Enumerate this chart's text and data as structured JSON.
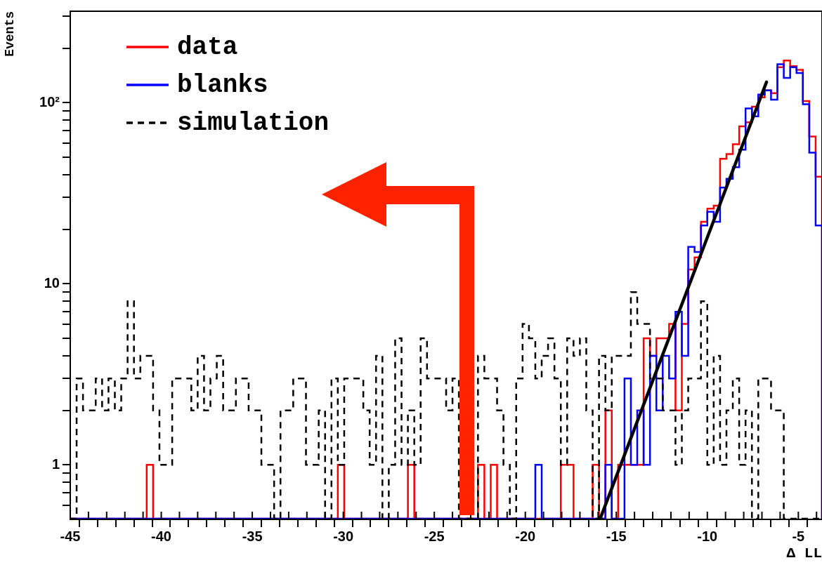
{
  "chart_data": {
    "type": "histogram",
    "xlabel": "Δ LL",
    "ylabel": "Events",
    "log": "y",
    "legend": "top left",
    "xlim": [
      -45,
      -3.7
    ],
    "ylim": [
      0.5,
      320
    ],
    "xticks": [
      -45,
      {
        "value": -44,
        "label": null
      },
      {
        "value": -43,
        "label": null
      },
      {
        "value": -42,
        "label": null
      },
      {
        "value": -41,
        "label": null
      },
      -40,
      {
        "value": -39,
        "label": null
      },
      {
        "value": -38,
        "label": null
      },
      {
        "value": -37,
        "label": null
      },
      {
        "value": -36,
        "label": null
      },
      -35,
      {
        "value": -34,
        "label": null
      },
      {
        "value": -33,
        "label": null
      },
      {
        "value": -32,
        "label": null
      },
      {
        "value": -31,
        "label": null
      },
      -30,
      {
        "value": -29,
        "label": null
      },
      {
        "value": -28,
        "label": null
      },
      {
        "value": -27,
        "label": null
      },
      {
        "value": -26,
        "label": null
      },
      -25,
      {
        "value": -24,
        "label": null
      },
      {
        "value": -23,
        "label": null
      },
      {
        "value": -22,
        "label": null
      },
      {
        "value": -21,
        "label": null
      },
      -20,
      {
        "value": -19,
        "label": null
      },
      {
        "value": -18,
        "label": null
      },
      {
        "value": -17,
        "label": null
      },
      {
        "value": -16,
        "label": null
      },
      -15,
      {
        "value": -14,
        "label": null
      },
      {
        "value": -13,
        "label": null
      },
      {
        "value": -12,
        "label": null
      },
      {
        "value": -11,
        "label": null
      },
      -10,
      {
        "value": -9,
        "label": null
      },
      {
        "value": -8,
        "label": null
      },
      {
        "value": -7,
        "label": null
      },
      {
        "value": -6,
        "label": null
      },
      -5,
      {
        "value": -4,
        "label": null
      }
    ],
    "yticks": [
      {
        "value": 0.6,
        "label": null
      },
      {
        "value": 0.7,
        "label": null
      },
      {
        "value": 0.8,
        "label": null
      },
      {
        "value": 0.9,
        "label": null
      },
      1,
      {
        "value": 2,
        "label": null
      },
      {
        "value": 3,
        "label": null
      },
      {
        "value": 4,
        "label": null
      },
      {
        "value": 5,
        "label": null
      },
      {
        "value": 6,
        "label": null
      },
      {
        "value": 7,
        "label": null
      },
      {
        "value": 8,
        "label": null
      },
      {
        "value": 9,
        "label": null
      },
      10,
      {
        "value": 20,
        "label": null
      },
      {
        "value": 30,
        "label": null
      },
      {
        "value": 40,
        "label": null
      },
      {
        "value": 50,
        "label": null
      },
      {
        "value": 60,
        "label": null
      },
      {
        "value": 70,
        "label": null
      },
      {
        "value": 80,
        "label": null
      },
      {
        "value": 90,
        "label": null
      },
      {
        "value": 100,
        "label": "10²"
      },
      {
        "value": 200,
        "label": null
      },
      {
        "value": 300,
        "label": null
      }
    ],
    "bins": [
      -45,
      -44.65,
      -44.3,
      -43.95,
      -43.6,
      -43.25,
      -42.9,
      -42.55,
      -42.2,
      -41.85,
      -41.5,
      -41.15,
      -40.8,
      -40.45,
      -40.1,
      -39.75,
      -39.4,
      -39.05,
      -38.7,
      -38.35,
      -38,
      -37.65,
      -37.3,
      -36.95,
      -36.6,
      -36.25,
      -35.9,
      -35.55,
      -35.2,
      -34.85,
      -34.5,
      -34.15,
      -33.8,
      -33.45,
      -33.1,
      -32.75,
      -32.4,
      -32.05,
      -31.7,
      -31.35,
      -31,
      -30.65,
      -30.3,
      -29.95,
      -29.6,
      -29.25,
      -28.9,
      -28.55,
      -28.2,
      -27.85,
      -27.5,
      -27.15,
      -26.8,
      -26.45,
      -26.1,
      -25.75,
      -25.4,
      -25.05,
      -24.7,
      -24.35,
      -24,
      -23.65,
      -23.3,
      -22.95,
      -22.6,
      -22.25,
      -21.9,
      -21.55,
      -21.2,
      -20.85,
      -20.5,
      -20.15,
      -19.8,
      -19.45,
      -19.1,
      -18.75,
      -18.4,
      -18.05,
      -17.7,
      -17.35,
      -17,
      -16.65,
      -16.3,
      -15.95,
      -15.6,
      -15.25,
      -14.9,
      -14.55,
      -14.2,
      -13.85,
      -13.5,
      -13.15,
      -12.8,
      -12.45,
      -12.1,
      -11.75,
      -11.4,
      -11.05,
      -10.7,
      -10.35,
      -10,
      -9.65,
      -9.3,
      -8.95,
      -8.6,
      -8.25,
      -7.9,
      -7.55,
      -7.2,
      -6.85,
      -6.5,
      -6.15,
      -5.8,
      -5.45,
      -5.1,
      -4.75,
      -4.4,
      -4.05,
      -3.7
    ],
    "series": [
      {
        "name": "data",
        "color": "#ff0000",
        "values": [
          null,
          null,
          null,
          null,
          null,
          null,
          null,
          null,
          null,
          null,
          null,
          null,
          1,
          null,
          null,
          null,
          null,
          null,
          null,
          null,
          null,
          null,
          null,
          null,
          null,
          null,
          null,
          null,
          null,
          null,
          null,
          null,
          null,
          null,
          null,
          null,
          null,
          null,
          null,
          null,
          null,
          null,
          1,
          null,
          null,
          null,
          null,
          null,
          null,
          null,
          null,
          null,
          null,
          1,
          null,
          null,
          null,
          null,
          null,
          null,
          null,
          null,
          null,
          null,
          1,
          null,
          1,
          null,
          null,
          null,
          null,
          null,
          null,
          null,
          null,
          null,
          null,
          1,
          1,
          null,
          null,
          null,
          1,
          null,
          2,
          null,
          1,
          1,
          1,
          1,
          5,
          4,
          5,
          5,
          6,
          2,
          6,
          12,
          14,
          22,
          26,
          27,
          49,
          52,
          59,
          74,
          78,
          95,
          107,
          117,
          113,
          157,
          171,
          159,
          152,
          102,
          65,
          39
        ]
      },
      {
        "name": "blanks",
        "color": "#0000ff",
        "values": [
          null,
          null,
          null,
          null,
          null,
          null,
          null,
          null,
          null,
          null,
          null,
          null,
          null,
          null,
          null,
          null,
          null,
          null,
          null,
          null,
          null,
          null,
          null,
          null,
          null,
          null,
          null,
          null,
          null,
          null,
          null,
          null,
          null,
          null,
          null,
          null,
          null,
          null,
          null,
          null,
          null,
          null,
          null,
          null,
          null,
          null,
          null,
          null,
          null,
          null,
          null,
          null,
          null,
          null,
          null,
          null,
          null,
          null,
          null,
          null,
          null,
          null,
          null,
          null,
          null,
          null,
          null,
          null,
          null,
          null,
          null,
          null,
          null,
          1,
          null,
          null,
          null,
          null,
          null,
          null,
          null,
          null,
          null,
          null,
          1,
          null,
          null,
          3,
          1,
          2,
          1,
          4,
          2,
          4,
          3,
          7,
          4,
          16,
          15,
          21,
          25,
          22,
          34,
          38,
          44,
          55,
          93,
          84,
          111,
          117,
          104,
          163,
          137,
          157,
          146,
          98,
          53,
          21
        ]
      },
      {
        "name": "simulation",
        "color": "#000000",
        "line_style": "dashed",
        "values": [
          null,
          3,
          2,
          2,
          3,
          2,
          3,
          2,
          3,
          8,
          3,
          4,
          4,
          2,
          1,
          1,
          3,
          3,
          3,
          2,
          4,
          2,
          3,
          4,
          2,
          2,
          3,
          3,
          2,
          2,
          1,
          1,
          null,
          2,
          2,
          3,
          3,
          1,
          1,
          2,
          null,
          3,
          1,
          3,
          3,
          3,
          2,
          1,
          4,
          null,
          1,
          5,
          1,
          2,
          1,
          5,
          3,
          3,
          3,
          2,
          3,
          null,
          null,
          null,
          4,
          3,
          3,
          2,
          1,
          null,
          3,
          6,
          5,
          3,
          4,
          5,
          3,
          1,
          5,
          4,
          5,
          2,
          null,
          4,
          2,
          4,
          4,
          4,
          9,
          6,
          6,
          3,
          3,
          2,
          2,
          1,
          2,
          3,
          3,
          8,
          1,
          4,
          1,
          2,
          3,
          1,
          2,
          null,
          3,
          3,
          2,
          2,
          null,
          null,
          null,
          null,
          null,
          null
        ]
      },
      {
        "type": "line",
        "color": "#000000",
        "x": [
          -15.9,
          -6.75
        ],
        "values": [
          0.5,
          130
        ]
      }
    ]
  }
}
